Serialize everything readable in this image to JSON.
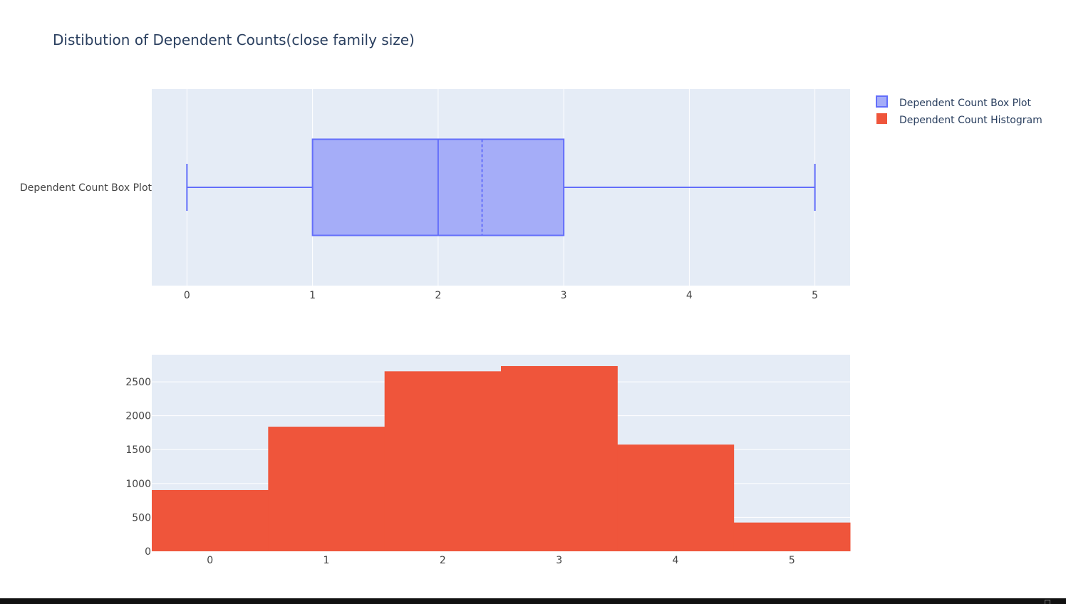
{
  "chart_data": [
    {
      "type": "box",
      "title": "Distibution of Dependent Counts(close family size)",
      "series": [
        {
          "name": "Dependent Count Box Plot",
          "min": 0,
          "q1": 1,
          "median": 2,
          "mean": 2.35,
          "q3": 3,
          "max": 5
        }
      ],
      "x_ticks": [
        "0",
        "1",
        "2",
        "3",
        "4",
        "5"
      ],
      "xlim": [
        -0.28,
        5.28
      ],
      "orientation": "horizontal",
      "grid": true
    },
    {
      "type": "bar",
      "series": [
        {
          "name": "Dependent Count Histogram",
          "categories": [
            "0",
            "1",
            "2",
            "3",
            "4",
            "5"
          ],
          "values": [
            904,
            1838,
            2655,
            2732,
            1574,
            424
          ]
        }
      ],
      "y_ticks": [
        "0",
        "500",
        "1000",
        "1500",
        "2000",
        "2500"
      ],
      "ylim": [
        0,
        2900
      ],
      "grid": true
    }
  ],
  "legend": {
    "placement": "top-right",
    "items": [
      {
        "label": "Dependent Count Box Plot",
        "color": "#636efa"
      },
      {
        "label": "Dependent Count Histogram",
        "color": "#ef553b"
      }
    ]
  },
  "colors": {
    "plot_bg": "#e5ecf6",
    "grid": "#ffffff",
    "box_line": "#636efa",
    "box_fill": "#a5adf8",
    "hist_fill": "#ef553b",
    "text": "#2a3f5f",
    "tick_text": "#444444"
  }
}
